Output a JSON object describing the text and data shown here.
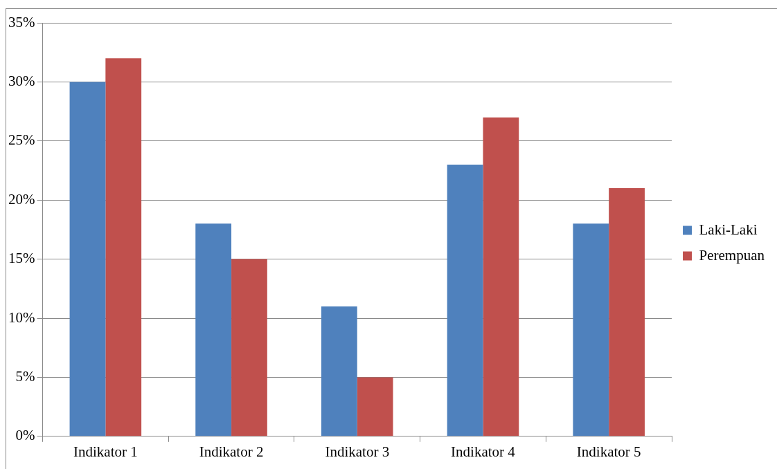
{
  "chart_data": {
    "type": "bar",
    "categories": [
      "Indikator 1",
      "Indikator 2",
      "Indikator 3",
      "Indikator 4",
      "Indikator 5"
    ],
    "series": [
      {
        "name": "Laki-Laki",
        "color": "#4f81bd",
        "values": [
          30,
          18,
          11,
          23,
          18
        ]
      },
      {
        "name": "Perempuan",
        "color": "#c0504d",
        "values": [
          32,
          15,
          5,
          27,
          21
        ]
      }
    ],
    "ylim": [
      0,
      35
    ],
    "yticks": [
      {
        "value": 0,
        "label": "0%"
      },
      {
        "value": 5,
        "label": "5%"
      },
      {
        "value": 10,
        "label": "10%"
      },
      {
        "value": 15,
        "label": "15%"
      },
      {
        "value": 20,
        "label": "20%"
      },
      {
        "value": 25,
        "label": "25%"
      },
      {
        "value": 30,
        "label": "30%"
      },
      {
        "value": 35,
        "label": "35%"
      }
    ],
    "grid": "y",
    "legend": "right"
  }
}
